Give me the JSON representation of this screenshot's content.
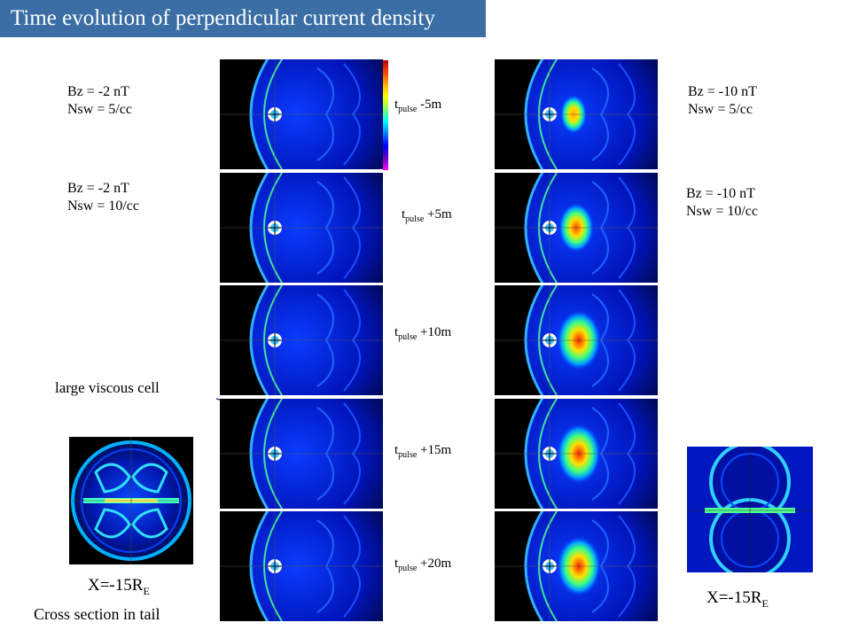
{
  "title": "Time evolution of perpendicular current density",
  "left_conditions": [
    {
      "bz": "Bz = -2 nT",
      "nsw": "Nsw = 5/cc"
    },
    {
      "bz": "Bz = -2 nT",
      "nsw": "Nsw = 10/cc"
    }
  ],
  "right_conditions": [
    {
      "bz": "Bz = -10 nT",
      "nsw": "Nsw = 5/cc"
    },
    {
      "bz": "Bz = -10 nT",
      "nsw": "Nsw = 10/cc"
    }
  ],
  "time_labels": [
    {
      "base": "t",
      "sub": "pulse",
      "offset": "-5m"
    },
    {
      "base": "t",
      "sub": "pulse",
      "offset": "+5m"
    },
    {
      "base": "t",
      "sub": "pulse",
      "offset": "+10m"
    },
    {
      "base": "t",
      "sub": "pulse",
      "offset": "+15m"
    },
    {
      "base": "t",
      "sub": "pulse",
      "offset": "+20m"
    }
  ],
  "annotation": "large viscous cell",
  "left_cross": {
    "base": "X=-15R",
    "sub": "E",
    "caption": "Cross section in tail"
  },
  "right_cross": {
    "base": "X=-15R",
    "sub": "E"
  },
  "colors": {
    "title_bar": "#3a6ea5",
    "title_text": "#ffffff",
    "plot_bg": "#000000",
    "plot_field": "#0018c8"
  }
}
